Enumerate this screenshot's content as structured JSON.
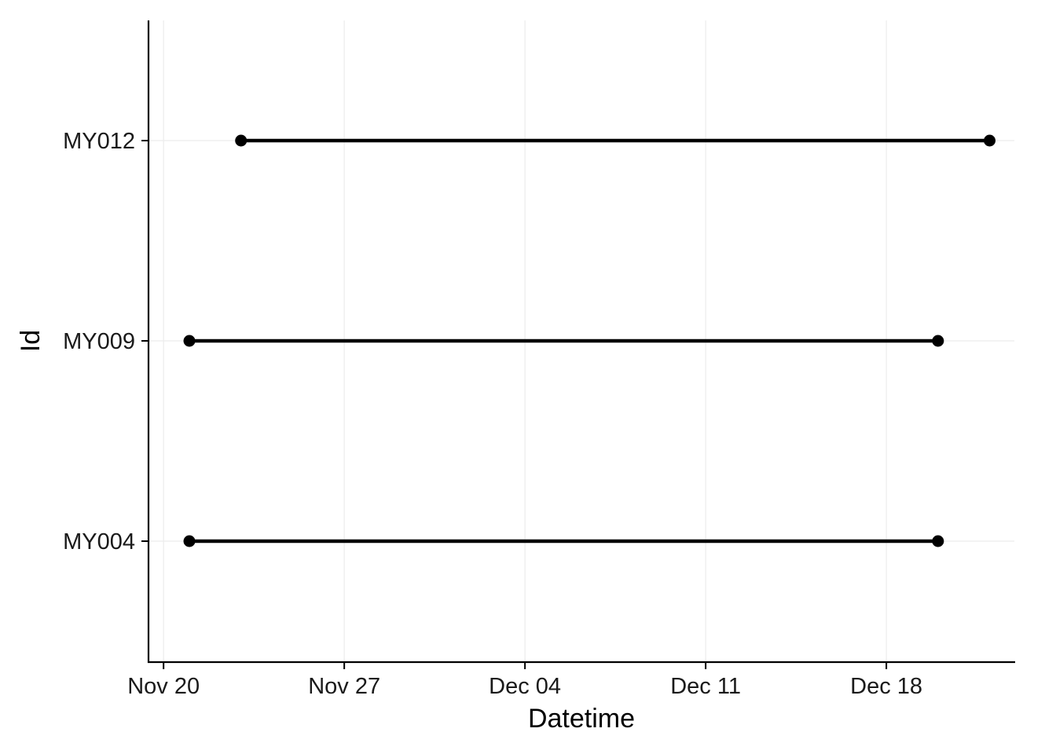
{
  "chart_data": {
    "type": "dumbbell",
    "xlabel": "Datetime",
    "ylabel": "Id",
    "x_ticks": [
      {
        "value": "2023-11-20",
        "label": "Nov 20"
      },
      {
        "value": "2023-11-27",
        "label": "Nov 27"
      },
      {
        "value": "2023-12-04",
        "label": "Dec 04"
      },
      {
        "value": "2023-12-11",
        "label": "Dec 11"
      },
      {
        "value": "2023-12-18",
        "label": "Dec 18"
      }
    ],
    "xlim": [
      "2023-11-19T10:00",
      "2023-12-22T23:00"
    ],
    "categories": [
      "MY004",
      "MY009",
      "MY012"
    ],
    "segments": [
      {
        "id": "MY004",
        "start": "2023-11-21",
        "end": "2023-12-20"
      },
      {
        "id": "MY009",
        "start": "2023-11-21",
        "end": "2023-12-20"
      },
      {
        "id": "MY012",
        "start": "2023-11-23",
        "end": "2023-12-22"
      }
    ],
    "grid": "major, light grey",
    "legend": "none",
    "colors": {
      "line": "#000000",
      "point": "#000000",
      "grid": "#ececec",
      "axis": "#000000"
    }
  }
}
